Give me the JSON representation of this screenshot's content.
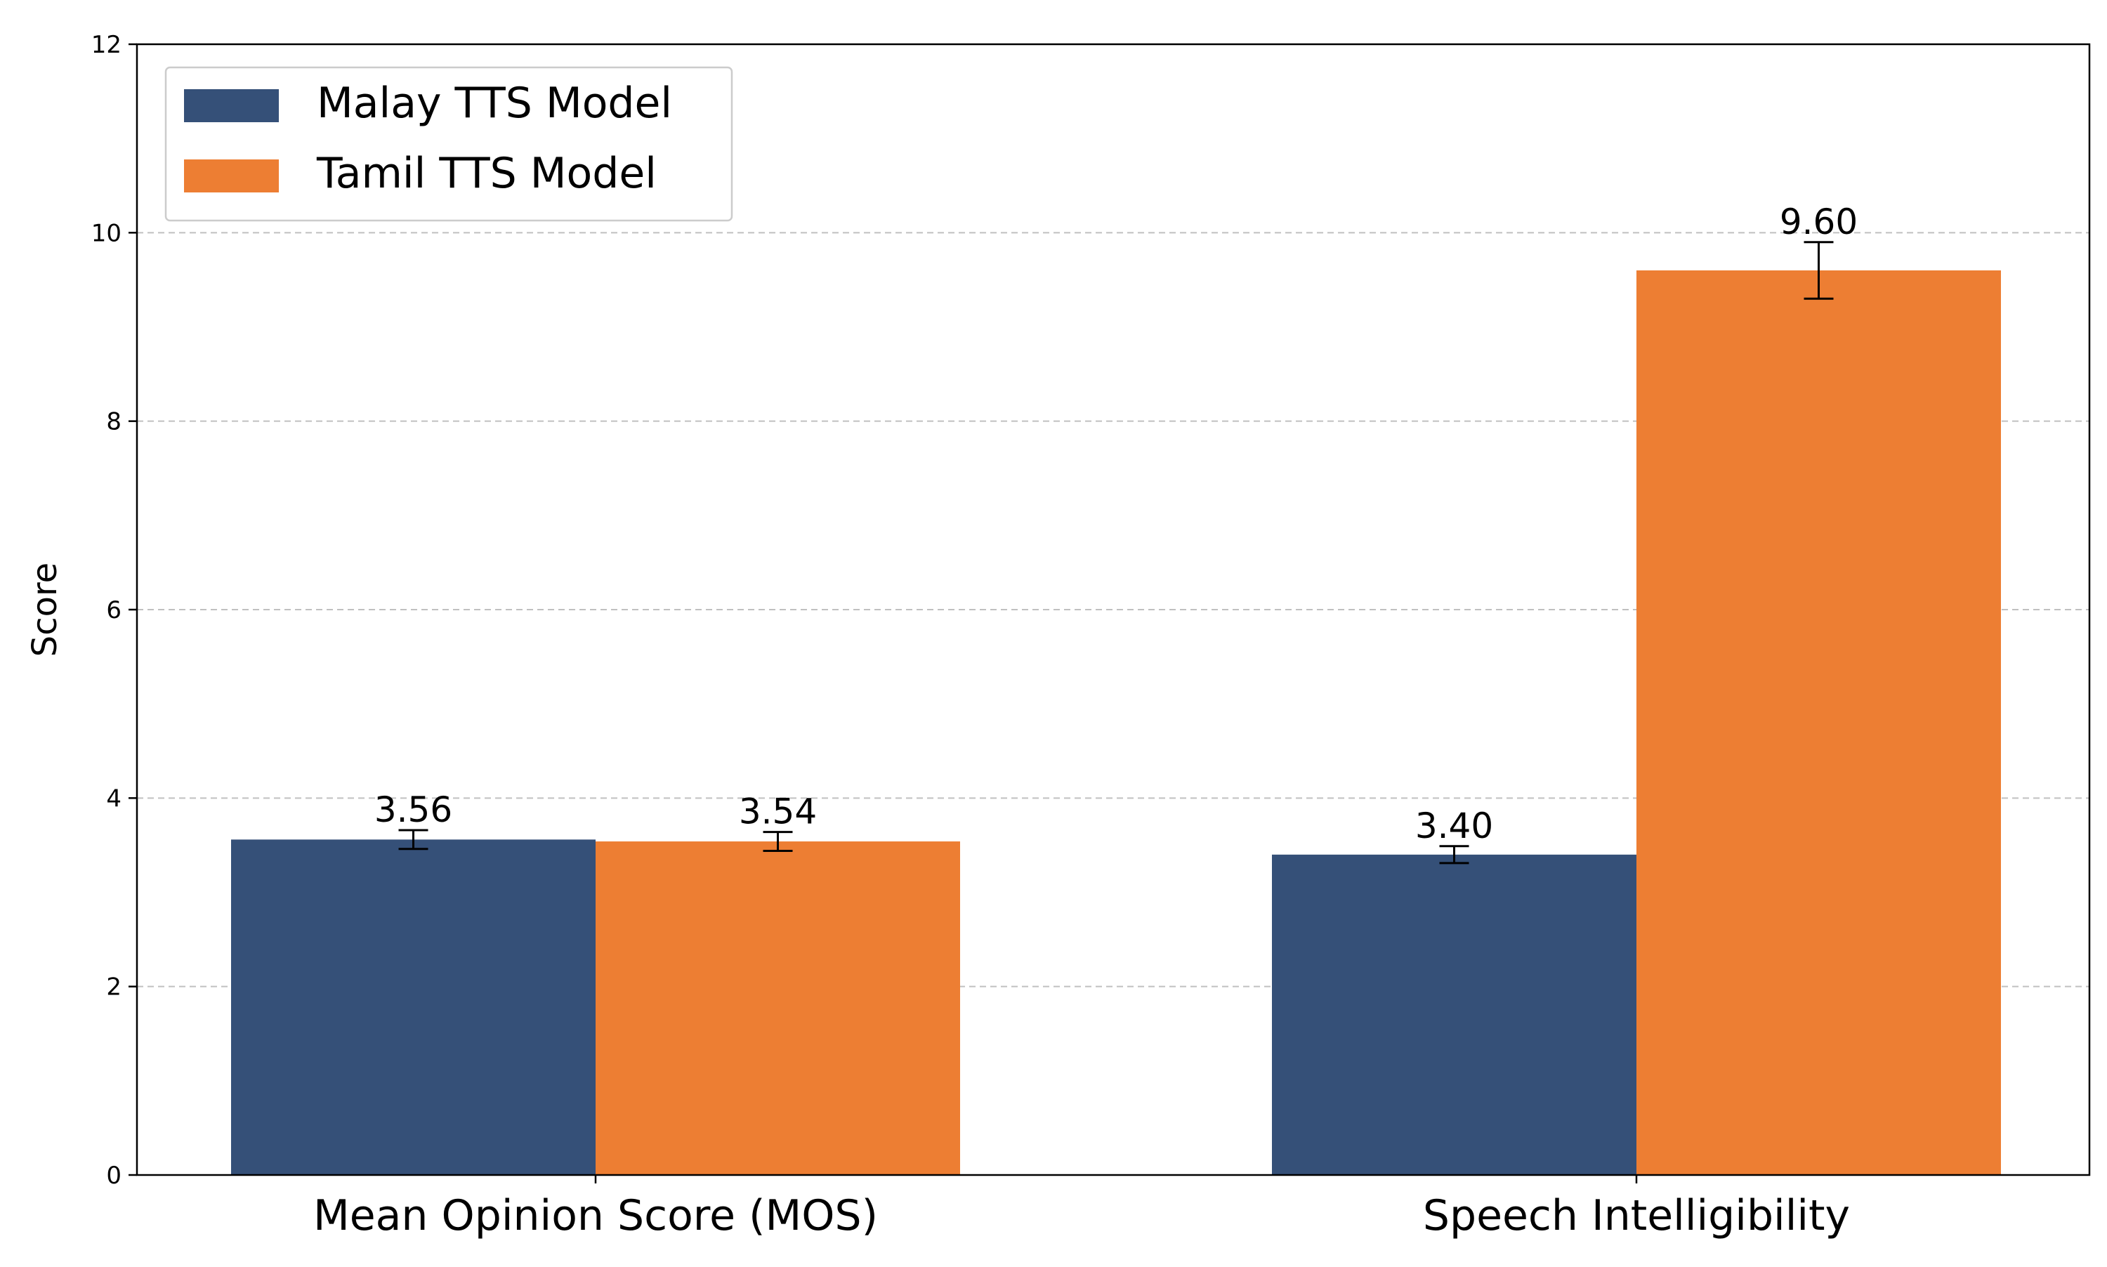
{
  "chart_data": {
    "type": "bar",
    "title": "",
    "xlabel": "",
    "ylabel": "Score",
    "ylim": [
      0,
      12
    ],
    "yticks": [
      "0",
      "2",
      "4",
      "6",
      "8",
      "10",
      "12"
    ],
    "categories": [
      "Mean Opinion Score (MOS)",
      "Speech Intelligibility"
    ],
    "series": [
      {
        "name": "Malay TTS Model",
        "color": "#355078",
        "values": [
          3.56,
          3.4
        ],
        "errors": [
          0.1,
          0.09
        ],
        "labels": [
          "3.56",
          "3.40"
        ]
      },
      {
        "name": "Tamil TTS Model",
        "color": "#ed7e33",
        "values": [
          3.54,
          9.6
        ],
        "errors": [
          0.1,
          0.3
        ],
        "labels": [
          "3.54",
          "9.60"
        ]
      }
    ],
    "grid": "y-dashed",
    "legend_position": "top-left",
    "error_bars": true
  }
}
